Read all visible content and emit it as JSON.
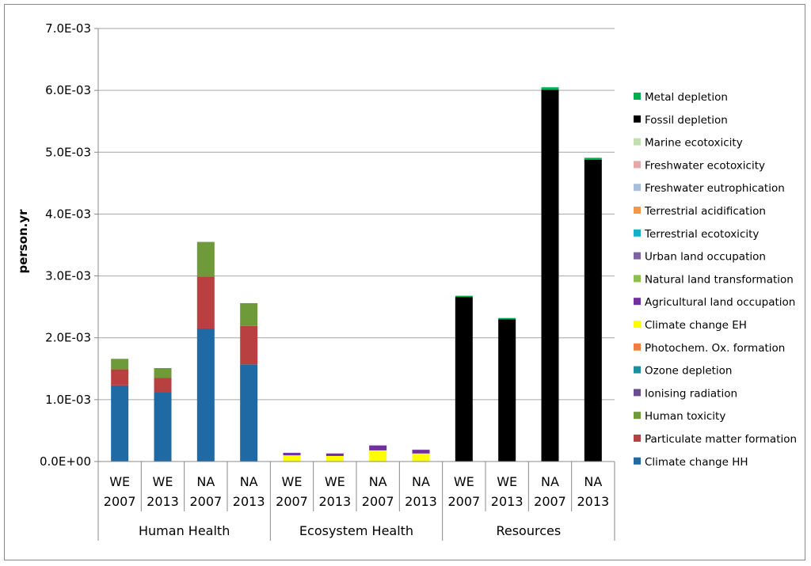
{
  "chart_data": {
    "type": "bar",
    "stacked": true,
    "title": "",
    "xlabel": "",
    "ylabel": "person.yr",
    "ylim": [
      0,
      0.007
    ],
    "y_ticks": [
      "0.0E+00",
      "1.0E-03",
      "2.0E-03",
      "3.0E-03",
      "4.0E-03",
      "5.0E-03",
      "6.0E-03",
      "7.0E-03"
    ],
    "grid": true,
    "legend_position": "right",
    "groups": [
      {
        "name": "Human Health",
        "categories": [
          [
            "WE",
            "2007"
          ],
          [
            "WE",
            "2013"
          ],
          [
            "NA",
            "2007"
          ],
          [
            "NA",
            "2013"
          ]
        ]
      },
      {
        "name": "Ecosystem Health",
        "categories": [
          [
            "WE",
            "2007"
          ],
          [
            "WE",
            "2013"
          ],
          [
            "NA",
            "2007"
          ],
          [
            "NA",
            "2013"
          ]
        ]
      },
      {
        "name": "Resources",
        "categories": [
          [
            "WE",
            "2007"
          ],
          [
            "WE",
            "2013"
          ],
          [
            "NA",
            "2007"
          ],
          [
            "NA",
            "2013"
          ]
        ]
      }
    ],
    "series": [
      {
        "name": "Climate change HH",
        "color": "#1f6aa5",
        "values": [
          0.00123,
          0.00112,
          0.00215,
          0.00157,
          0,
          0,
          0,
          0,
          0,
          0,
          0,
          0
        ]
      },
      {
        "name": "Particulate matter formation",
        "color": "#b94040",
        "values": [
          0.00026,
          0.00023,
          0.00084,
          0.00062,
          0,
          0,
          0,
          0,
          0,
          0,
          0,
          0
        ]
      },
      {
        "name": "Human toxicity",
        "color": "#6f9a3a",
        "values": [
          0.00017,
          0.00016,
          0.00056,
          0.00037,
          0,
          0,
          0,
          0,
          0,
          0,
          0,
          0
        ]
      },
      {
        "name": "Ionising radiation",
        "color": "#6a4c93",
        "values": [
          0,
          0,
          0,
          0,
          0,
          0,
          0,
          0,
          0,
          0,
          0,
          0
        ]
      },
      {
        "name": "Ozone depletion",
        "color": "#1a8fa0",
        "values": [
          0,
          0,
          0,
          0,
          0,
          0,
          0,
          0,
          0,
          0,
          0,
          0
        ]
      },
      {
        "name": "Photochem. Ox. formation",
        "color": "#f07f3c",
        "values": [
          0,
          0,
          0,
          0,
          0,
          0,
          0,
          0,
          0,
          0,
          0,
          0
        ]
      },
      {
        "name": "Climate change EH",
        "color": "#ffff00",
        "values": [
          0,
          0,
          0,
          0,
          0.0001,
          9e-05,
          0.00018,
          0.00013,
          0,
          0,
          0,
          0
        ]
      },
      {
        "name": "Agricultural land occupation",
        "color": "#7030a0",
        "values": [
          0,
          0,
          0,
          0,
          4e-05,
          4e-05,
          8e-05,
          6e-05,
          0,
          0,
          0,
          0
        ]
      },
      {
        "name": "Natural land transformation",
        "color": "#8cbe4a",
        "values": [
          0,
          0,
          0,
          0,
          0,
          0,
          0,
          0,
          0,
          0,
          0,
          0
        ]
      },
      {
        "name": "Urban land occupation",
        "color": "#8064a2",
        "values": [
          0,
          0,
          0,
          0,
          0,
          0,
          0,
          0,
          0,
          0,
          0,
          0
        ]
      },
      {
        "name": "Terrestrial ecotoxicity",
        "color": "#17b0c8",
        "values": [
          0,
          0,
          0,
          0,
          0,
          0,
          0,
          0,
          0,
          0,
          0,
          0
        ]
      },
      {
        "name": "Terrestrial acidification",
        "color": "#f79646",
        "values": [
          0,
          0,
          0,
          0,
          0,
          0,
          0,
          0,
          0,
          0,
          0,
          0
        ]
      },
      {
        "name": "Freshwater eutrophication",
        "color": "#a6bddb",
        "values": [
          0,
          0,
          0,
          0,
          0,
          0,
          0,
          0,
          0,
          0,
          0,
          0
        ]
      },
      {
        "name": "Freshwater ecotoxicity",
        "color": "#e6a8a8",
        "values": [
          0,
          0,
          0,
          0,
          0,
          0,
          0,
          0,
          0,
          0,
          0,
          0
        ]
      },
      {
        "name": "Marine ecotoxicity",
        "color": "#c3dfb0",
        "values": [
          0,
          0,
          0,
          0,
          0,
          0,
          0,
          0,
          0,
          0,
          0,
          0
        ]
      },
      {
        "name": "Fossil depletion",
        "color": "#000000",
        "values": [
          0,
          0,
          0,
          0,
          0,
          0,
          0,
          0,
          0.00266,
          0.0023,
          0.00601,
          0.00488
        ]
      },
      {
        "name": "Metal depletion",
        "color": "#00b050",
        "values": [
          0,
          0,
          0,
          0,
          0,
          0,
          0,
          0,
          2e-05,
          2e-05,
          4e-05,
          3e-05
        ]
      }
    ]
  }
}
